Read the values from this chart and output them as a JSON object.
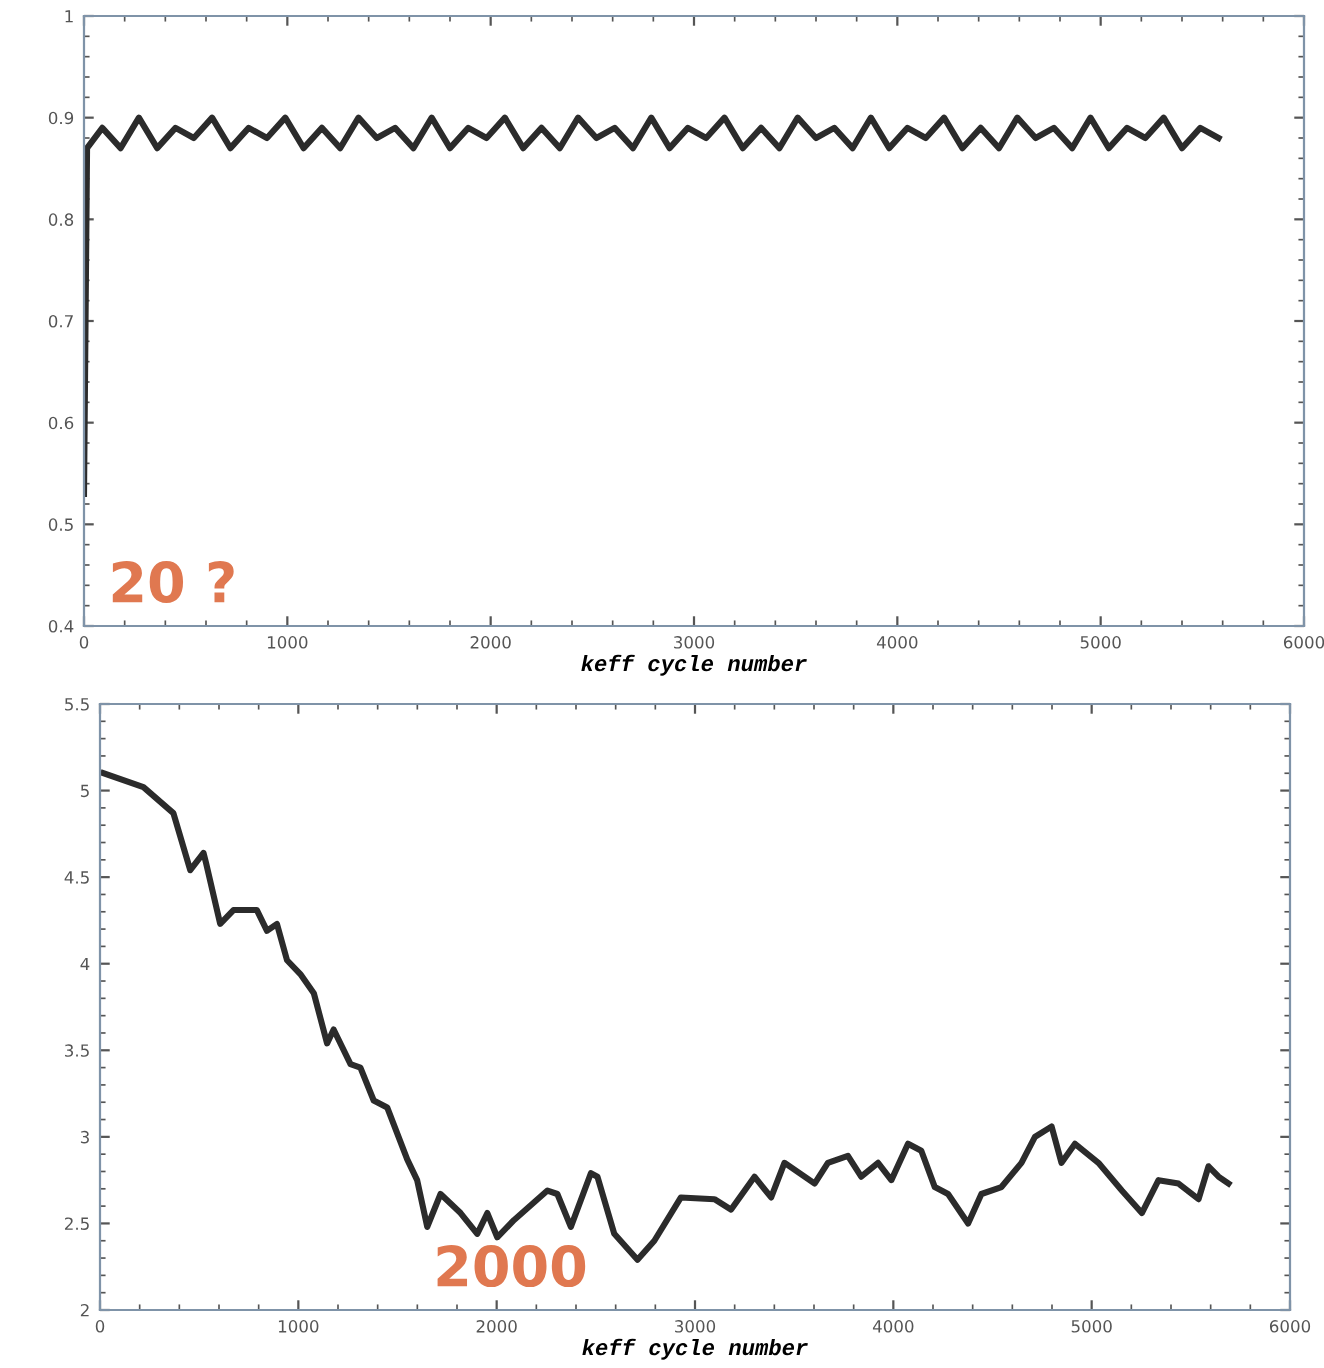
{
  "chart_data": [
    {
      "type": "line",
      "xlabel": "keff cycle number",
      "xlim": [
        0,
        6000
      ],
      "ylim": [
        0.4,
        1
      ],
      "xticks": [
        0,
        1000,
        2000,
        3000,
        4000,
        5000,
        6000
      ],
      "yticks": [
        0.4,
        0.5,
        0.6,
        0.7,
        0.8,
        0.9,
        1
      ],
      "annotations": [
        "20 ?"
      ],
      "series": [
        {
          "color": "#2b2b2b",
          "x": [
            0,
            15,
            90,
            180,
            270,
            360,
            450,
            540,
            630,
            720,
            810,
            900,
            990,
            1080,
            1170,
            1260,
            1350,
            1440,
            1530,
            1620,
            1710,
            1800,
            1890,
            1980,
            2070,
            2160,
            2250,
            2340,
            2430,
            2520,
            2610,
            2700,
            2790,
            2880,
            2970,
            3060,
            3150,
            3240,
            3330,
            3420,
            3510,
            3600,
            3690,
            3780,
            3870,
            3960,
            4050,
            4140,
            4230,
            4320,
            4410,
            4500,
            4590,
            4680,
            4770,
            4860,
            4950,
            5040,
            5130,
            5220,
            5310,
            5400,
            5490,
            5580
          ],
          "values": [
            0.53,
            0.87,
            0.89,
            0.87,
            0.9,
            0.87,
            0.89,
            0.88,
            0.9,
            0.87,
            0.89,
            0.88,
            0.9,
            0.87,
            0.89,
            0.87,
            0.9,
            0.88,
            0.89,
            0.87,
            0.9,
            0.87,
            0.89,
            0.88,
            0.9,
            0.87,
            0.89,
            0.87,
            0.9,
            0.88,
            0.89,
            0.87,
            0.9,
            0.87,
            0.89,
            0.88,
            0.9,
            0.87,
            0.89,
            0.87,
            0.9,
            0.88,
            0.89,
            0.87,
            0.9,
            0.87,
            0.89,
            0.88,
            0.9,
            0.87,
            0.89,
            0.87,
            0.9,
            0.88,
            0.89,
            0.87,
            0.9,
            0.87,
            0.89,
            0.88,
            0.9,
            0.87,
            0.89,
            0.88
          ]
        }
      ]
    },
    {
      "type": "line",
      "xlabel": "keff cycle number",
      "xlim": [
        0,
        6000
      ],
      "ylim": [
        2,
        5.5
      ],
      "xticks": [
        0,
        1000,
        2000,
        3000,
        4000,
        5000,
        6000
      ],
      "yticks": [
        2,
        2.5,
        3,
        3.5,
        4,
        4.5,
        5,
        5.5
      ],
      "annotations": [
        "2000"
      ],
      "series": [
        {
          "color": "#2b2b2b",
          "x": [
            17,
            219,
            370,
            455,
            522,
            535,
            606,
            673,
            791,
            842,
            892,
            943,
            1010,
            1078,
            1145,
            1178,
            1263,
            1313,
            1380,
            1448,
            1549,
            1599,
            1650,
            1717,
            1818,
            1902,
            1953,
            2003,
            2088,
            2256,
            2306,
            2374,
            2475,
            2508,
            2593,
            2710,
            2795,
            2929,
            3098,
            3182,
            3300,
            3384,
            3451,
            3603,
            3670,
            3771,
            3838,
            3923,
            3990,
            4074,
            4141,
            4209,
            4276,
            4377,
            4444,
            4545,
            4646,
            4714,
            4798,
            4848,
            4916,
            5034,
            5152,
            5253,
            5337,
            5438,
            5539,
            5589,
            5640,
            5690
          ],
          "values": [
            5.1,
            5.02,
            4.87,
            4.54,
            4.64,
            4.58,
            4.23,
            4.31,
            4.31,
            4.19,
            4.23,
            4.02,
            3.94,
            3.83,
            3.54,
            3.62,
            3.42,
            3.4,
            3.21,
            3.17,
            2.87,
            2.75,
            2.48,
            2.67,
            2.56,
            2.44,
            2.56,
            2.42,
            2.52,
            2.69,
            2.67,
            2.48,
            2.79,
            2.77,
            2.44,
            2.29,
            2.4,
            2.65,
            2.64,
            2.58,
            2.77,
            2.65,
            2.85,
            2.73,
            2.85,
            2.89,
            2.77,
            2.85,
            2.75,
            2.96,
            2.92,
            2.71,
            2.67,
            2.5,
            2.67,
            2.71,
            2.85,
            3.0,
            3.06,
            2.85,
            2.96,
            2.85,
            2.69,
            2.56,
            2.75,
            2.73,
            2.64,
            2.83,
            2.77,
            2.73
          ]
        }
      ]
    }
  ]
}
